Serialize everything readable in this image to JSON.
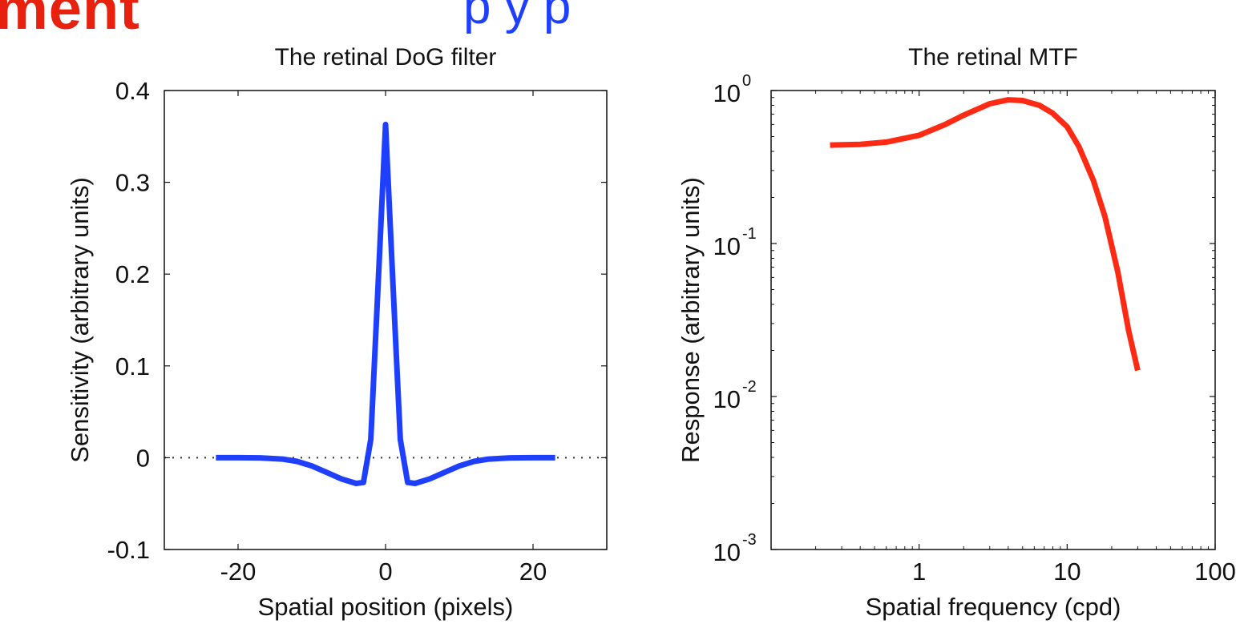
{
  "header": {
    "partial_word": "ment",
    "partial_subtitle": "p                         y          p"
  },
  "colors": {
    "header_red": "#e8200e",
    "header_blue": "#1f3fff",
    "dog_line": "#1f3fff",
    "mtf_line": "#ff2a14",
    "zero_line": "#333333"
  },
  "chart_data": [
    {
      "type": "line",
      "title": "The retinal DoG filter",
      "xlabel": "Spatial position (pixels)",
      "ylabel": "Sensitivity (arbitrary units)",
      "xlim": [
        -30,
        30
      ],
      "ylim": [
        -0.1,
        0.4
      ],
      "xticks": [
        -20,
        0,
        20
      ],
      "xtick_labels": [
        "-20",
        "0",
        "20"
      ],
      "yticks": [
        -0.1,
        0,
        0.1,
        0.2,
        0.3,
        0.4
      ],
      "ytick_labels": [
        "-0.1",
        "0",
        "0.1",
        "0.2",
        "0.3",
        "0.4"
      ],
      "reference_line": {
        "y": 0,
        "style": "dotted"
      },
      "series": [
        {
          "x": [
            -23,
            -20,
            -17,
            -14,
            -12,
            -10,
            -8,
            -6,
            -4,
            -3,
            -2,
            -1,
            0,
            1,
            2,
            3,
            4,
            6,
            8,
            10,
            12,
            14,
            17,
            20,
            23
          ],
          "y": [
            0,
            0,
            -0.0002,
            -0.0015,
            -0.004,
            -0.009,
            -0.016,
            -0.023,
            -0.028,
            -0.027,
            0.02,
            0.19,
            0.363,
            0.19,
            0.02,
            -0.027,
            -0.028,
            -0.023,
            -0.016,
            -0.009,
            -0.004,
            -0.0015,
            -0.0002,
            0,
            0
          ]
        }
      ]
    },
    {
      "type": "line",
      "title": "The retinal MTF",
      "xlabel": "Spatial frequency (cpd)",
      "ylabel": "Response (arbitrary units)",
      "xscale": "log",
      "yscale": "log",
      "xlim": [
        0.1,
        100
      ],
      "ylim": [
        0.001,
        1
      ],
      "xticks": [
        1,
        10,
        100
      ],
      "xtick_labels": [
        "1",
        "10",
        "100"
      ],
      "yticks": [
        0.001,
        0.01,
        0.1,
        1
      ],
      "ytick_labels": [
        {
          "base": "10",
          "exp": "-3"
        },
        {
          "base": "10",
          "exp": "-2"
        },
        {
          "base": "10",
          "exp": "-1"
        },
        {
          "base": "10",
          "exp": "0"
        }
      ],
      "series": [
        {
          "x": [
            0.25,
            0.4,
            0.6,
            1.0,
            1.5,
            2.0,
            3.0,
            4.0,
            5.0,
            6.5,
            8.0,
            10,
            12,
            15,
            18,
            22,
            26,
            30
          ],
          "y": [
            0.44,
            0.445,
            0.46,
            0.51,
            0.6,
            0.69,
            0.82,
            0.87,
            0.86,
            0.8,
            0.71,
            0.58,
            0.43,
            0.26,
            0.15,
            0.065,
            0.027,
            0.0148
          ]
        }
      ]
    }
  ]
}
